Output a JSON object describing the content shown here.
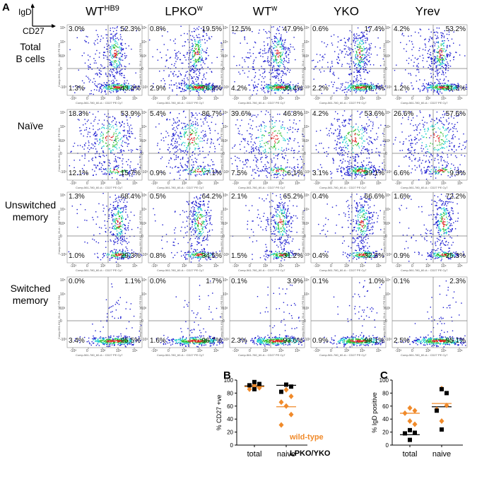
{
  "panels": {
    "a": "A",
    "b": "B",
    "c": "C"
  },
  "axis_legend": {
    "y": "IgD",
    "x": "CD27"
  },
  "columns": [
    {
      "base": "WT",
      "sup": "HB9"
    },
    {
      "base": "LPKO",
      "sup": "w"
    },
    {
      "base": "WT",
      "sup": "w"
    },
    {
      "base": "YKO",
      "sup": ""
    },
    {
      "base": "Yrev",
      "sup": ""
    }
  ],
  "rows": [
    {
      "label_lines": [
        "Total",
        "B cells"
      ]
    },
    {
      "label_lines": [
        "Naïve"
      ]
    },
    {
      "label_lines": [
        "Unswitched",
        "memory"
      ]
    },
    {
      "label_lines": [
        "Switched",
        "memory"
      ]
    }
  ],
  "flow_axes": {
    "x_title": "Comp-561-780_60-A :: CD27 PE Cy7",
    "y_title": "Comp-561-610_20-A :: IgD PE 594",
    "x_ticks": [
      "-10³",
      "0",
      "10³",
      "10⁴",
      "10⁵"
    ],
    "y_ticks": [
      "10⁵",
      "10⁴",
      "10³",
      "0",
      "-10³"
    ]
  },
  "quadrants": [
    [
      {
        "tl": "3.0%",
        "tr": "52.3%",
        "bl": "1.3%",
        "br": "43.4%"
      },
      {
        "tl": "0.8%",
        "tr": "19.5%",
        "bl": "2.9%",
        "br": "76.8%"
      },
      {
        "tl": "12.5%",
        "tr": "47.9%",
        "bl": "4.2%",
        "br": "35.4%"
      },
      {
        "tl": "0.6%",
        "tr": "17.4%",
        "bl": "2.2%",
        "br": "79.7%"
      },
      {
        "tl": "4.2%",
        "tr": "53.2%",
        "bl": "1.2%",
        "br": "41.5%"
      }
    ],
    [
      {
        "tl": "18.3%",
        "tr": "53.9%",
        "bl": "12.1%",
        "br": "15.7%"
      },
      {
        "tl": "5.4%",
        "tr": "86.7%",
        "bl": "0.9%",
        "br": "7.1%"
      },
      {
        "tl": "39.6%",
        "tr": "46.8%",
        "bl": "7.5%",
        "br": "6.1%"
      },
      {
        "tl": "4.2%",
        "tr": "53.6%",
        "bl": "3.1%",
        "br": "39.1%"
      },
      {
        "tl": "26.6%",
        "tr": "57.6%",
        "bl": "6.6%",
        "br": "9.3%"
      }
    ],
    [
      {
        "tl": "1.3%",
        "tr": "68.4%",
        "bl": "1.0%",
        "br": "29.3%"
      },
      {
        "tl": "0.5%",
        "tr": "64.2%",
        "bl": "0.8%",
        "br": "34.5%"
      },
      {
        "tl": "2.1%",
        "tr": "65.2%",
        "bl": "1.5%",
        "br": "31.2%"
      },
      {
        "tl": "0.4%",
        "tr": "66.6%",
        "bl": "0.4%",
        "br": "32.6%"
      },
      {
        "tl": "1.6%",
        "tr": "72.2%",
        "bl": "0.9%",
        "br": "25.3%"
      }
    ],
    [
      {
        "tl": "0.0%",
        "tr": "1.1%",
        "bl": "3.4%",
        "br": "95.5%"
      },
      {
        "tl": "0.0%",
        "tr": "1.7%",
        "bl": "1.6%",
        "br": "96.7%"
      },
      {
        "tl": "0.1%",
        "tr": "3.9%",
        "bl": "2.3%",
        "br": "93.6%"
      },
      {
        "tl": "0.1%",
        "tr": "1.0%",
        "bl": "0.9%",
        "br": "98.1%"
      },
      {
        "tl": "0.1%",
        "tr": "2.3%",
        "bl": "2.5%",
        "br": "95.1%"
      }
    ]
  ],
  "colors": {
    "wild_type": "#f08a2a",
    "ko": "#000000",
    "flow_low": "#1a1ad0",
    "flow_mid": "#22d0d0",
    "flow_high": "#30c030",
    "flow_peak": "#e02020"
  },
  "chart_data": [
    {
      "type": "scatter",
      "panel": "B",
      "ylabel": "% CD27 +ve",
      "xlabel": "",
      "categories": [
        "total",
        "naive"
      ],
      "yticks": [
        0,
        20,
        40,
        60,
        80,
        100
      ],
      "ylim": [
        0,
        100
      ],
      "series": [
        {
          "name": "wild-type",
          "marker": "diamond",
          "color": "#f08a2a",
          "points": [
            {
              "x": "total",
              "y": 93
            },
            {
              "x": "total",
              "y": 88
            },
            {
              "x": "total",
              "y": 86
            },
            {
              "x": "naive",
              "y": 85
            },
            {
              "x": "naive",
              "y": 75
            },
            {
              "x": "naive",
              "y": 66
            },
            {
              "x": "naive",
              "y": 60
            },
            {
              "x": "naive",
              "y": 47
            },
            {
              "x": "naive",
              "y": 31
            }
          ]
        },
        {
          "name": "LPKO/YKO",
          "marker": "square",
          "color": "#000000",
          "points": [
            {
              "x": "total",
              "y": 97
            },
            {
              "x": "total",
              "y": 94
            },
            {
              "x": "total",
              "y": 92
            },
            {
              "x": "total",
              "y": 86
            },
            {
              "x": "naive",
              "y": 93
            },
            {
              "x": "naive",
              "y": 90
            },
            {
              "x": "naive",
              "y": 82
            }
          ]
        }
      ],
      "means": [
        {
          "x": "total",
          "y": 91,
          "color": "#000000"
        },
        {
          "x": "total",
          "y": 90,
          "color": "#f08a2a"
        },
        {
          "x": "naive",
          "y": 92,
          "color": "#000000"
        },
        {
          "x": "naive",
          "y": 59,
          "color": "#f08a2a"
        }
      ],
      "legend": [
        {
          "label": "wild-type",
          "color": "#f08a2a"
        },
        {
          "label": "LPKO/YKO",
          "color": "#000000"
        }
      ]
    },
    {
      "type": "scatter",
      "panel": "C",
      "ylabel": "% IgD positive",
      "xlabel": "",
      "categories": [
        "total",
        "naive"
      ],
      "yticks": [
        0,
        20,
        40,
        60,
        80,
        100
      ],
      "ylim": [
        0,
        100
      ],
      "series": [
        {
          "name": "wild-type",
          "marker": "diamond",
          "color": "#f08a2a",
          "points": [
            {
              "x": "total",
              "y": 57
            },
            {
              "x": "total",
              "y": 53
            },
            {
              "x": "total",
              "y": 49
            },
            {
              "x": "total",
              "y": 37
            },
            {
              "x": "total",
              "y": 32
            },
            {
              "x": "naive",
              "y": 87
            },
            {
              "x": "naive",
              "y": 61
            },
            {
              "x": "naive",
              "y": 55
            },
            {
              "x": "naive",
              "y": 37
            }
          ]
        },
        {
          "name": "LPKO/YKO",
          "marker": "square",
          "color": "#000000",
          "points": [
            {
              "x": "total",
              "y": 23
            },
            {
              "x": "total",
              "y": 19
            },
            {
              "x": "total",
              "y": 18
            },
            {
              "x": "total",
              "y": 8
            },
            {
              "x": "naive",
              "y": 86
            },
            {
              "x": "naive",
              "y": 80
            },
            {
              "x": "naive",
              "y": 53
            },
            {
              "x": "naive",
              "y": 24
            }
          ]
        }
      ],
      "means": [
        {
          "x": "total",
          "y": 49,
          "color": "#f08a2a"
        },
        {
          "x": "total",
          "y": 16,
          "color": "#000000"
        },
        {
          "x": "naive",
          "y": 64,
          "color": "#f08a2a"
        },
        {
          "x": "naive",
          "y": 59,
          "color": "#000000"
        }
      ]
    }
  ]
}
